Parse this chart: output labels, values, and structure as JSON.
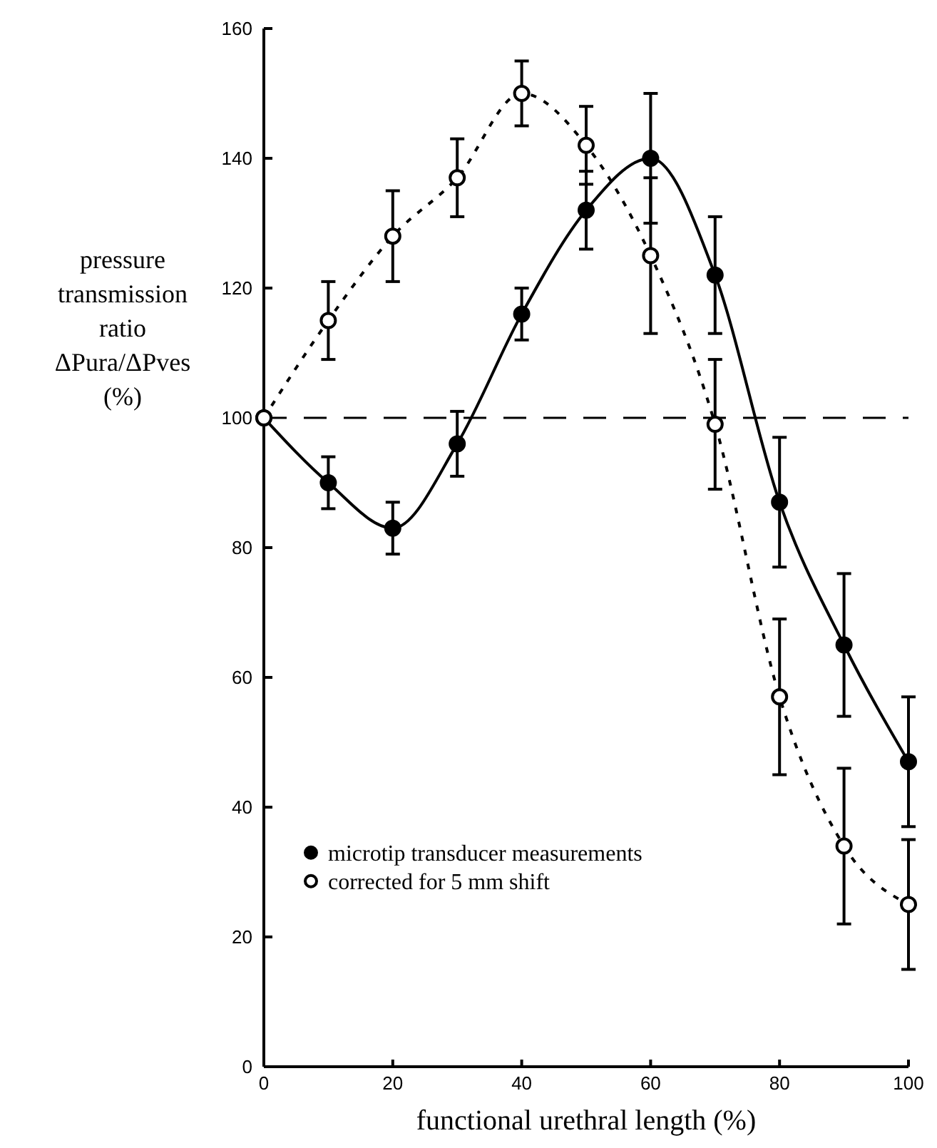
{
  "chart_data": {
    "type": "line",
    "xlabel": "functional urethral length (%)",
    "ylabel": "pressure\ntransmission\nratio\nΔPura/ΔPves\n(%)",
    "x": [
      0,
      10,
      20,
      30,
      40,
      50,
      60,
      70,
      80,
      90,
      100
    ],
    "xlim": [
      0,
      100
    ],
    "xticks": [
      0,
      20,
      40,
      60,
      80,
      100
    ],
    "ylim": [
      0,
      160
    ],
    "yticks": [
      0,
      20,
      40,
      60,
      80,
      100,
      120,
      140,
      160
    ],
    "grid": false,
    "legend": "bottom left",
    "marker": "circle",
    "series": [
      {
        "name": "microtip transducer measurements",
        "color": "#000000",
        "line_style": "solid",
        "values": [
          100,
          90,
          83,
          96,
          116,
          132,
          140,
          122,
          87,
          65,
          47
        ],
        "errors": [
          null,
          4,
          4,
          5,
          4,
          6,
          10,
          9,
          10,
          11,
          10
        ]
      },
      {
        "name": "corrected for 5 mm shift",
        "color": "#000000",
        "line_style": "dotted",
        "values": [
          100,
          115,
          128,
          137,
          150,
          142,
          125,
          99,
          57,
          34,
          25
        ],
        "errors": [
          null,
          6,
          7,
          6,
          5,
          6,
          12,
          10,
          12,
          12,
          10
        ]
      }
    ],
    "ref_lines": [
      {
        "axis": "y",
        "value": 100,
        "line_style": "dashed"
      }
    ]
  }
}
